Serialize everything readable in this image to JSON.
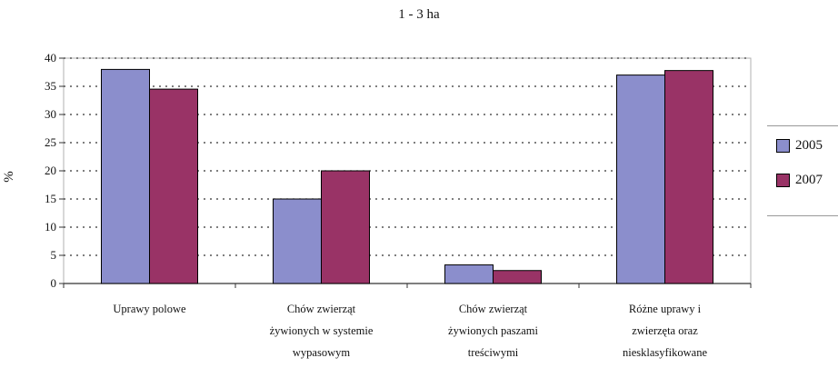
{
  "chart_data": {
    "type": "bar",
    "title": "1 - 3 ha",
    "ylabel": "%",
    "xlabel": "",
    "ylim": [
      0,
      40
    ],
    "yticks": [
      "0",
      "5",
      "10",
      "15",
      "20",
      "25",
      "30",
      "35",
      "40"
    ],
    "grid": true,
    "legend_position": "right",
    "categories": [
      [
        "Uprawy polowe"
      ],
      [
        "Chów zwierząt",
        "żywionych w systemie",
        "wypasowym"
      ],
      [
        "Chów zwierząt",
        "żywionych paszami",
        "treściwymi"
      ],
      [
        "Różne uprawy i",
        "zwierzęta oraz",
        "niesklasyfikowane"
      ]
    ],
    "series": [
      {
        "name": "2005",
        "color": "#8b8ecc",
        "values": [
          38.0,
          15.0,
          3.3,
          37.0
        ]
      },
      {
        "name": "2007",
        "color": "#993366",
        "values": [
          34.5,
          20.0,
          2.3,
          37.8
        ]
      }
    ]
  }
}
